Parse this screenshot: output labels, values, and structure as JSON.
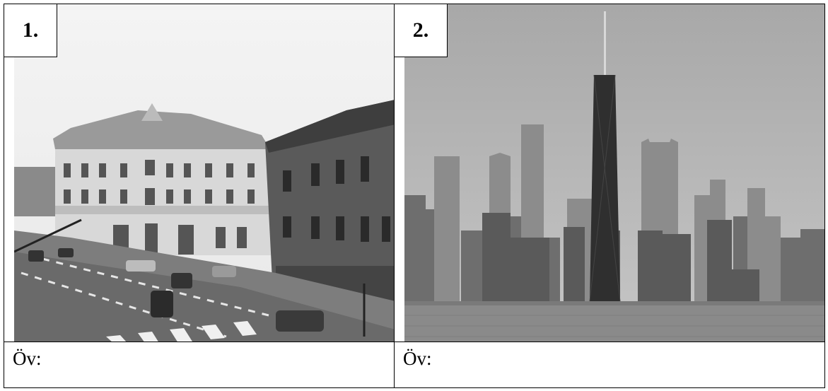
{
  "photos": [
    {
      "number": "1.",
      "caption": "Öv:"
    },
    {
      "number": "2.",
      "caption": "Öv:"
    }
  ]
}
